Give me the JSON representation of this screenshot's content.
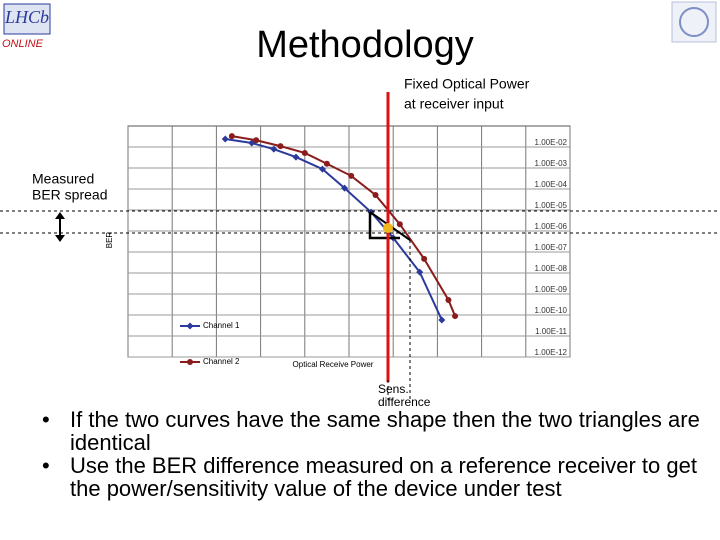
{
  "header": {
    "logo": "LHCb",
    "logo_sub": "ONLINE",
    "title": "Methodology"
  },
  "annotations": {
    "fixed_power": [
      "Fixed Optical Power",
      "at receiver input"
    ],
    "ber_spread": [
      "Measured",
      "BER spread"
    ],
    "sens_diff": [
      "Sens.",
      "difference"
    ]
  },
  "chart_data": {
    "type": "line",
    "y_label": "BER",
    "x_label": "Optical Receive Power",
    "log_y": true,
    "grid": true,
    "xlim": [
      0,
      10
    ],
    "xticks": [
      0,
      1,
      2,
      3,
      4,
      5,
      6,
      7,
      8,
      9,
      10
    ],
    "ylim": [
      1e-12,
      0.1
    ],
    "yticks": [
      {
        "value": 0.01,
        "label": "1.00E-02"
      },
      {
        "value": 0.001,
        "label": "1.00E-03"
      },
      {
        "value": 0.0001,
        "label": "1.00E-04"
      },
      {
        "value": 1e-05,
        "label": "1.00E-05"
      },
      {
        "value": 1e-06,
        "label": "1.00E-06"
      },
      {
        "value": 1e-07,
        "label": "1.00E-07"
      },
      {
        "value": 1e-08,
        "label": "1.00E-08"
      },
      {
        "value": 1e-09,
        "label": "1.00E-09"
      },
      {
        "value": 1e-10,
        "label": "1.00E-10"
      },
      {
        "value": 1e-11,
        "label": "1.00E-11"
      },
      {
        "value": 1e-12,
        "label": "1.00E-12"
      }
    ],
    "series": [
      {
        "name": "Channel 1",
        "color": "#2b3a9c",
        "marker": "diamond",
        "x": [
          2.2,
          2.8,
          3.3,
          3.8,
          4.4,
          4.9,
          5.5,
          6.0,
          6.6,
          7.1
        ],
        "values": [
          0.024,
          0.0155,
          0.0079,
          0.0033,
          0.00089,
          0.00011,
          7.9e-06,
          4.7e-07,
          1.1e-08,
          5.8e-11
        ]
      },
      {
        "name": "Channel 2",
        "color": "#8b1c1c",
        "marker": "circle",
        "x": [
          2.35,
          2.9,
          3.45,
          4.0,
          4.5,
          5.05,
          5.6,
          6.15,
          6.7,
          7.25,
          7.4
        ],
        "values": [
          0.033,
          0.021,
          0.011,
          0.0052,
          0.0016,
          0.00042,
          5.2e-05,
          2.1e-06,
          4.7e-08,
          5.2e-10,
          8.9e-11
        ]
      }
    ]
  },
  "bullets": [
    "If the two curves have the same shape then the two triangles are identical",
    "Use the BER difference measured on a reference receiver to get the power/sensitivity value of the device under test"
  ]
}
